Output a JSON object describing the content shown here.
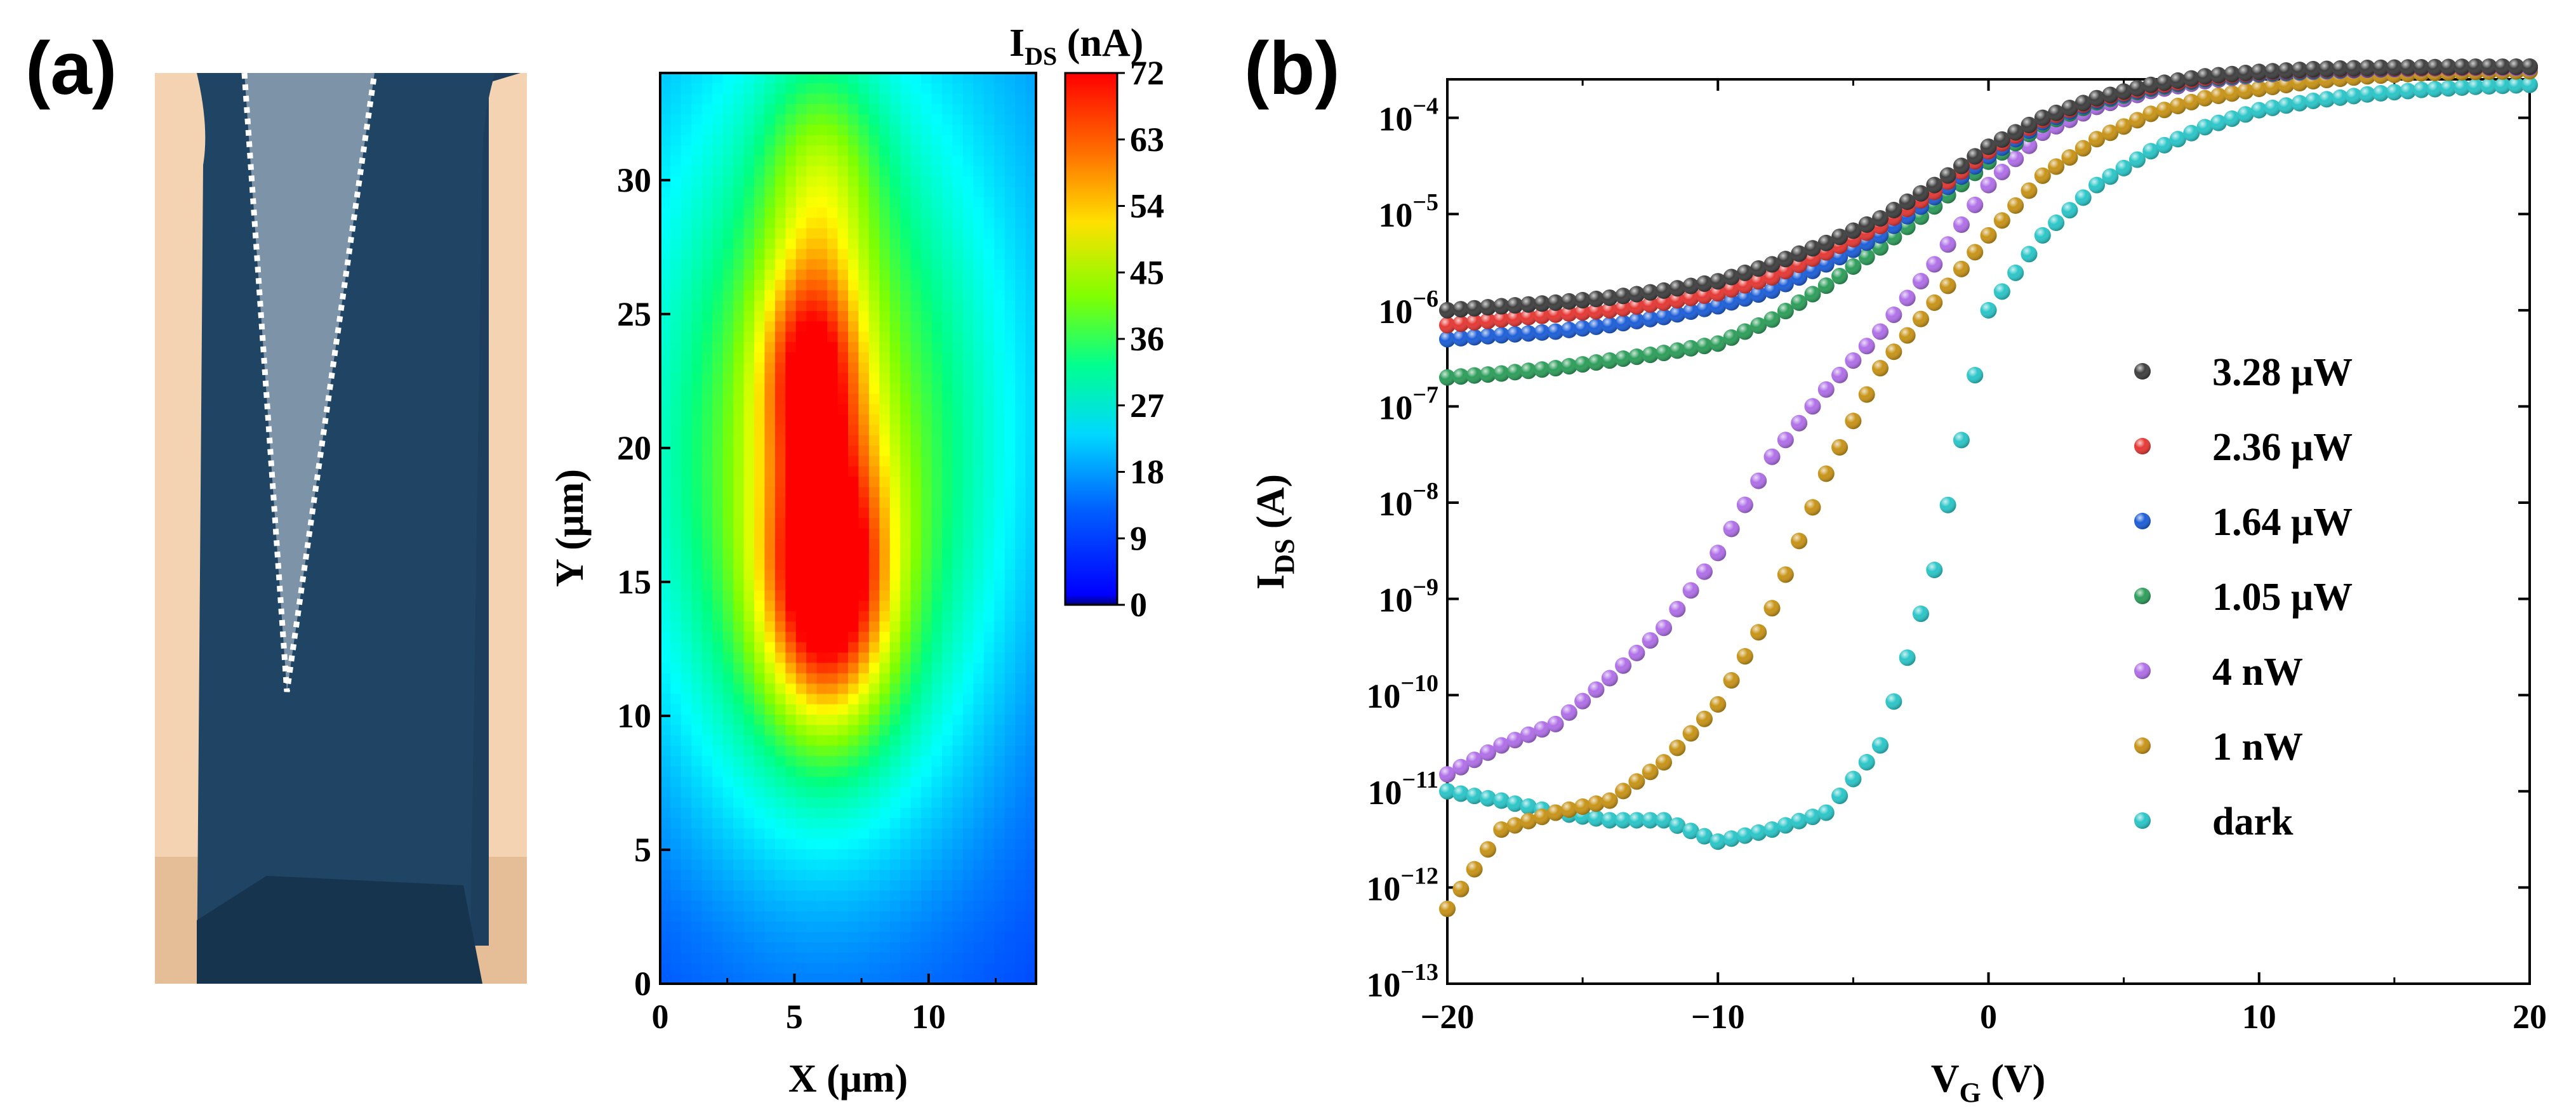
{
  "panels": {
    "a_label": "(a)",
    "b_label": "(b)"
  },
  "chart_data": [
    {
      "panel": "a",
      "type": "heatmap",
      "title": "",
      "xlabel": "X (μm)",
      "ylabel": "Y (μm)",
      "xlim": [
        0,
        14
      ],
      "ylim": [
        0,
        34
      ],
      "xticks": [
        "0",
        "5",
        "10"
      ],
      "xtick_values": [
        0,
        5,
        10
      ],
      "yticks": [
        "0",
        "5",
        "10",
        "15",
        "20",
        "25",
        "30"
      ],
      "ytick_values": [
        0,
        5,
        10,
        15,
        20,
        25,
        30
      ],
      "colorbar": {
        "label_main": "I",
        "label_sub": "DS",
        "label_unit": " (nA)",
        "range": [
          0,
          72
        ],
        "ticks": [
          "72",
          "63",
          "54",
          "45",
          "36",
          "27",
          "18",
          "9",
          "0"
        ],
        "tick_values": [
          72,
          63,
          54,
          45,
          36,
          27,
          18,
          9,
          0
        ],
        "colors": [
          "#000080",
          "#0000ff",
          "#0080ff",
          "#00ffff",
          "#00ff80",
          "#80ff00",
          "#ffff00",
          "#ff8000",
          "#ff0000"
        ]
      },
      "hotspots": [
        {
          "x": 6.2,
          "y": 15.0,
          "sx": 1.6,
          "sy": 3.6,
          "amp": 44
        },
        {
          "x": 5.6,
          "y": 23.0,
          "sx": 1.3,
          "sy": 2.8,
          "amp": 30
        },
        {
          "x": 6.0,
          "y": 30.0,
          "sx": 1.5,
          "sy": 3.2,
          "amp": 16
        },
        {
          "x": 6.0,
          "y": 18.0,
          "sx": 4.2,
          "sy": 9.0,
          "amp": 26
        },
        {
          "x": 6.0,
          "y": 22.0,
          "sx": 7.0,
          "sy": 13.0,
          "amp": 14
        }
      ]
    },
    {
      "panel": "b",
      "type": "scatter",
      "title": "",
      "xlabel_main": "V",
      "xlabel_sub": "G",
      "xlabel_unit": " (V)",
      "ylabel_main": "I",
      "ylabel_sub": "DS",
      "ylabel_unit": " (A)",
      "xlim": [
        -20,
        20
      ],
      "ylog_range": [
        -13,
        -3.6
      ],
      "xticks": [
        "−20",
        "−10",
        "0",
        "10",
        "20"
      ],
      "xtick_values": [
        -20,
        -10,
        0,
        10,
        20
      ],
      "ytick_exponents": [
        -13,
        -12,
        -11,
        -10,
        -9,
        -8,
        -7,
        -6,
        -5,
        -4
      ],
      "ytick_base": "10",
      "x": [
        -20,
        -18,
        -16,
        -14,
        -12,
        -10,
        -8,
        -6,
        -4,
        -2,
        0,
        2,
        4,
        6,
        8,
        10,
        12,
        14,
        16,
        18,
        20
      ],
      "legend_position": "center-right",
      "series": [
        {
          "name": "3.28 μW",
          "color": "#404040",
          "values": [
            1e-06,
            1.1e-06,
            1.2e-06,
            1.35e-06,
            1.6e-06,
            2e-06,
            3e-06,
            5e-06,
            9e-06,
            2e-05,
            5e-05,
            0.0001,
            0.00016,
            0.00022,
            0.00027,
            0.0003,
            0.00032,
            0.00033,
            0.000335,
            0.00034,
            0.00034
          ]
        },
        {
          "name": "2.36 μW",
          "color": "#e53935",
          "values": [
            7e-07,
            8e-07,
            9e-07,
            1e-06,
            1.2e-06,
            1.5e-06,
            2.2e-06,
            4e-06,
            7.5e-06,
            1.7e-05,
            4.5e-05,
            9.5e-05,
            0.000155,
            0.00021,
            0.00026,
            0.000295,
            0.000315,
            0.000325,
            0.00033,
            0.000335,
            0.00034
          ]
        },
        {
          "name": "1.64 μW",
          "color": "#1e5fd8",
          "values": [
            5e-07,
            5.5e-07,
            6e-07,
            7e-07,
            8.5e-07,
            1.1e-06,
            1.6e-06,
            3e-06,
            6e-06,
            1.5e-05,
            4e-05,
            9e-05,
            0.00015,
            0.000205,
            0.000255,
            0.00029,
            0.00031,
            0.00032,
            0.00033,
            0.000335,
            0.00034
          ]
        },
        {
          "name": "1.05 μW",
          "color": "#2e9e5b",
          "values": [
            2e-07,
            2.2e-07,
            2.5e-07,
            3e-07,
            3.6e-07,
            4.5e-07,
            8e-07,
            1.8e-06,
            4.5e-06,
            1.2e-05,
            3.5e-05,
            8.5e-05,
            0.000145,
            0.0002,
            0.00025,
            0.000285,
            0.000305,
            0.00032,
            0.00033,
            0.000335,
            0.00034
          ]
        },
        {
          "name": "4 nW",
          "color": "#b070e8",
          "values": [
            1.5e-11,
            3e-11,
            5e-11,
            1.5e-10,
            5e-10,
            3e-09,
            3e-08,
            1.5e-07,
            6e-07,
            3e-06,
            2e-05,
            7e-05,
            0.00013,
            0.00019,
            0.00024,
            0.00028,
            0.0003,
            0.000315,
            0.000325,
            0.00033,
            0.00033
          ]
        },
        {
          "name": "1 nW",
          "color": "#c89418",
          "values": [
            6e-13,
            4e-12,
            6e-12,
            8e-12,
            2e-11,
            8e-11,
            8e-10,
            2e-08,
            2.5e-07,
            1.2e-06,
            6e-06,
            2.5e-05,
            6e-05,
            0.00011,
            0.00016,
            0.0002,
            0.00024,
            0.00027,
            0.00029,
            0.0003,
            0.000305
          ]
        },
        {
          "name": "dark",
          "color": "#2cc6c8",
          "values": [
            1e-11,
            8e-12,
            6e-12,
            5e-12,
            5e-12,
            3e-12,
            4e-12,
            6e-12,
            3e-11,
            2e-09,
            1e-06,
            6e-06,
            2e-05,
            4.5e-05,
            8e-05,
            0.00012,
            0.00015,
            0.000175,
            0.000195,
            0.00021,
            0.00022
          ]
        }
      ]
    }
  ]
}
